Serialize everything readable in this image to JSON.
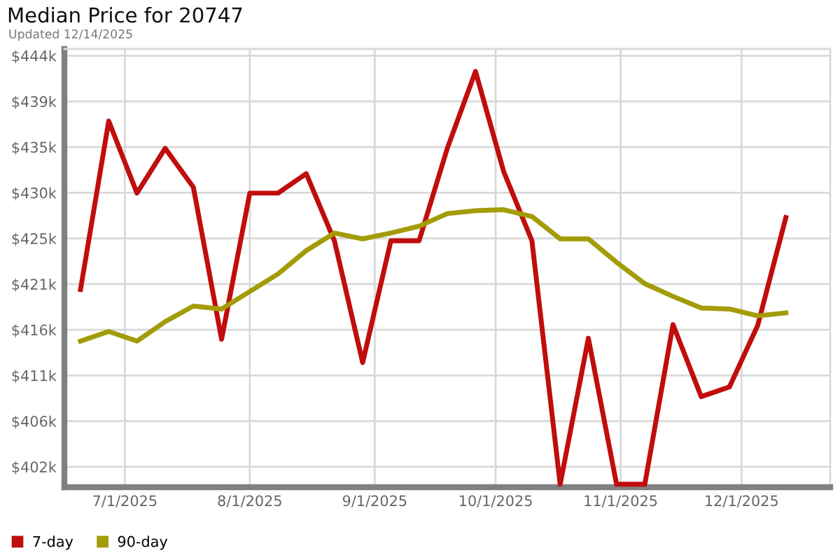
{
  "chart_data": {
    "type": "line",
    "title": "Median Price for 20747",
    "subtitle": "Updated 12/14/2025",
    "x": [
      "2025-06-20",
      "2025-06-27",
      "2025-07-04",
      "2025-07-11",
      "2025-07-18",
      "2025-07-25",
      "2025-08-01",
      "2025-08-08",
      "2025-08-15",
      "2025-08-22",
      "2025-08-29",
      "2025-09-05",
      "2025-09-12",
      "2025-09-19",
      "2025-09-26",
      "2025-10-03",
      "2025-10-10",
      "2025-10-17",
      "2025-10-24",
      "2025-10-31",
      "2025-11-07",
      "2025-11-14",
      "2025-11-21",
      "2025-11-28",
      "2025-12-05",
      "2025-12-12"
    ],
    "series": [
      {
        "name": "7-day",
        "color": "#c00d0d",
        "values": [
          420000,
          437300,
          429900,
          434500,
          430500,
          414900,
          429900,
          429900,
          431900,
          425000,
          412500,
          425000,
          425000,
          434500,
          442400,
          432100,
          425000,
          400000,
          415000,
          400000,
          400000,
          416400,
          409000,
          410000,
          416300,
          427400
        ]
      },
      {
        "name": "90-day",
        "color": "#a39c08",
        "values": [
          414700,
          415700,
          414700,
          416700,
          418300,
          418000,
          419800,
          421600,
          424000,
          425800,
          425200,
          425800,
          426500,
          427800,
          428100,
          428200,
          427500,
          425200,
          425200,
          422800,
          420600,
          419300,
          418100,
          418000,
          417300,
          417600
        ]
      }
    ],
    "xlim": [
      "2025-06-16",
      "2025-12-23"
    ],
    "xticks": [
      {
        "value": "2025-07-01",
        "label": "7/1/2025"
      },
      {
        "value": "2025-08-01",
        "label": "8/1/2025"
      },
      {
        "value": "2025-09-01",
        "label": "9/1/2025"
      },
      {
        "value": "2025-10-01",
        "label": "10/1/2025"
      },
      {
        "value": "2025-11-01",
        "label": "11/1/2025"
      },
      {
        "value": "2025-12-01",
        "label": "12/1/2025"
      }
    ],
    "ylim": [
      399700,
      444700
    ],
    "yticks": [
      {
        "value": 401800,
        "label": "$402k"
      },
      {
        "value": 406490,
        "label": "$406k"
      },
      {
        "value": 411180,
        "label": "$411k"
      },
      {
        "value": 415870,
        "label": "$416k"
      },
      {
        "value": 420560,
        "label": "$421k"
      },
      {
        "value": 425250,
        "label": "$425k"
      },
      {
        "value": 429940,
        "label": "$430k"
      },
      {
        "value": 434630,
        "label": "$435k"
      },
      {
        "value": 439320,
        "label": "$439k"
      },
      {
        "value": 444010,
        "label": "$444k"
      }
    ],
    "grid": true,
    "legend": "bottom left",
    "marker": "none",
    "line_style": "solid"
  }
}
